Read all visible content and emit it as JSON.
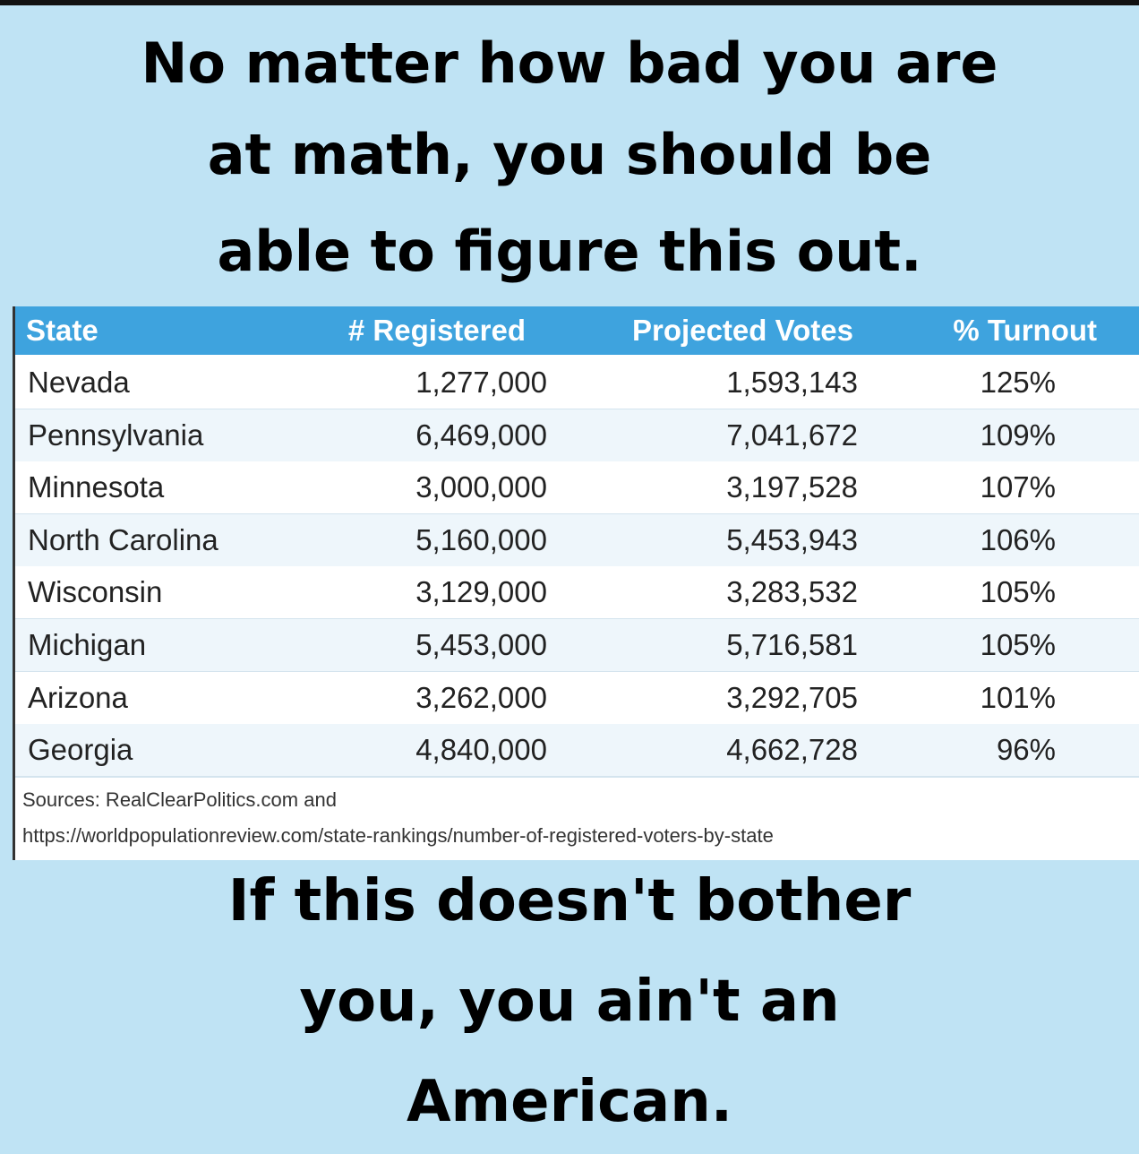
{
  "header": {
    "lines": [
      "No matter how bad you are",
      "at math, you should be",
      "able to figure this out."
    ]
  },
  "table": {
    "columns": [
      "State",
      "# Registered",
      "Projected Votes",
      "% Turnout"
    ],
    "rows": [
      [
        "Nevada",
        "1,277,000",
        "1,593,143",
        "125%"
      ],
      [
        "Pennsylvania",
        "6,469,000",
        "7,041,672",
        "109%"
      ],
      [
        "Minnesota",
        "3,000,000",
        "3,197,528",
        "107%"
      ],
      [
        "North Carolina",
        "5,160,000",
        "5,453,943",
        "106%"
      ],
      [
        "Wisconsin",
        "3,129,000",
        "3,283,532",
        "105%"
      ],
      [
        "Michigan",
        "5,453,000",
        "5,716,581",
        "105%"
      ],
      [
        "Arizona",
        "3,262,000",
        "3,292,705",
        "101%"
      ],
      [
        "Georgia",
        "4,840,000",
        "4,662,728",
        "96%"
      ]
    ],
    "sources": [
      "Sources: RealClearPolitics.com and",
      "https://worldpopulationreview.com/state-rankings/number-of-registered-voters-by-state"
    ]
  },
  "footer": {
    "lines": [
      "If this doesn't bother",
      "you, you ain't an",
      "American."
    ]
  }
}
